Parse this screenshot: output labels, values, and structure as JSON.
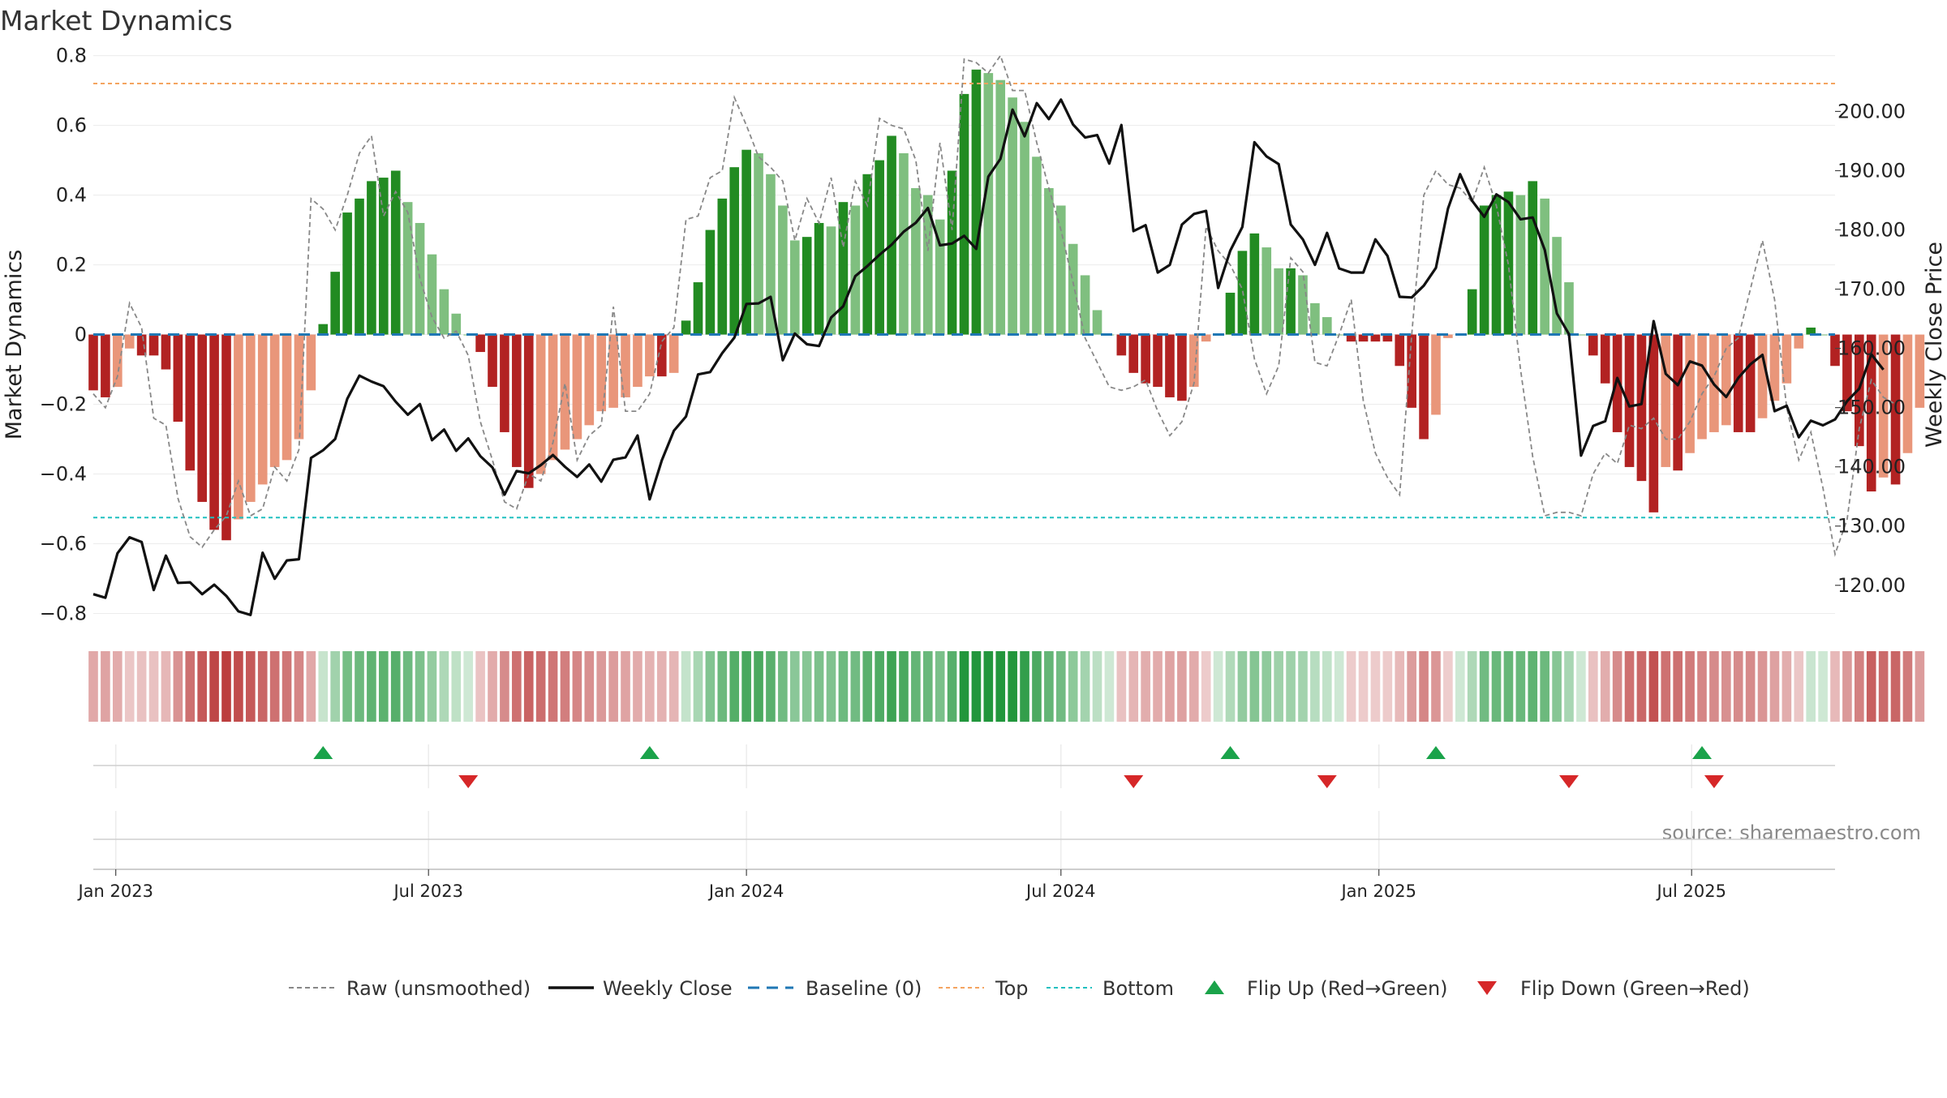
{
  "chart_data": {
    "type": "bar",
    "title": "Market Dynamics",
    "ylabel_left": "Market Dynamics",
    "ylabel_right": "Weekly Close Price",
    "ylim_left": [
      -0.85,
      0.82
    ],
    "ylim_right": [
      112.3,
      210.6
    ],
    "yticks_left": [
      "0.8",
      "0.6",
      "0.4",
      "0.2",
      "0",
      "−0.2",
      "−0.4",
      "−0.6",
      "−0.8"
    ],
    "yticks_left_values": [
      0.8,
      0.6,
      0.4,
      0.2,
      0,
      -0.2,
      -0.4,
      -0.6,
      -0.8
    ],
    "yticks_right": [
      "200.00",
      "190.00",
      "180.00",
      "170.00",
      "160.00",
      "150.00",
      "140.00",
      "130.00",
      "120.00"
    ],
    "yticks_right_values": [
      200,
      190,
      180,
      170,
      160,
      150,
      140,
      130,
      120
    ],
    "x_start": "2022-12-19",
    "x_end": "2025-09-22",
    "xticks": [
      {
        "date": "2023-01-01",
        "label": "Jan 2023"
      },
      {
        "date": "2023-07-01",
        "label": "Jul 2023"
      },
      {
        "date": "2024-01-01",
        "label": "Jan 2024"
      },
      {
        "date": "2024-07-01",
        "label": "Jul 2024"
      },
      {
        "date": "2025-01-01",
        "label": "Jan 2025"
      },
      {
        "date": "2025-07-01",
        "label": "Jul 2025"
      }
    ],
    "first_week": "2022-12-19",
    "dynamics": [
      -0.16,
      -0.18,
      -0.15,
      -0.04,
      -0.06,
      -0.06,
      -0.1,
      -0.25,
      -0.39,
      -0.48,
      -0.56,
      -0.59,
      -0.53,
      -0.48,
      -0.43,
      -0.38,
      -0.36,
      -0.3,
      -0.16,
      0.03,
      0.18,
      0.35,
      0.39,
      0.44,
      0.45,
      0.47,
      0.38,
      0.32,
      0.23,
      0.13,
      0.06,
      0,
      -0.05,
      -0.15,
      -0.28,
      -0.38,
      -0.44,
      -0.4,
      -0.36,
      -0.33,
      -0.3,
      -0.26,
      -0.22,
      -0.21,
      -0.18,
      -0.15,
      -0.12,
      -0.12,
      -0.11,
      0.04,
      0.15,
      0.3,
      0.39,
      0.48,
      0.53,
      0.52,
      0.46,
      0.37,
      0.27,
      0.28,
      0.32,
      0.31,
      0.38,
      0.37,
      0.46,
      0.5,
      0.57,
      0.52,
      0.42,
      0.4,
      0.33,
      0.47,
      0.69,
      0.76,
      0.75,
      0.73,
      0.68,
      0.61,
      0.51,
      0.42,
      0.37,
      0.26,
      0.17,
      0.07,
      0,
      -0.06,
      -0.11,
      -0.14,
      -0.15,
      -0.18,
      -0.19,
      -0.15,
      -0.02,
      0,
      0.12,
      0.24,
      0.29,
      0.25,
      0.19,
      0.19,
      0.17,
      0.09,
      0.05,
      0,
      -0.02,
      -0.02,
      -0.02,
      -0.02,
      -0.09,
      -0.21,
      -0.3,
      -0.23,
      -0.01,
      0,
      0.13,
      0.37,
      0.4,
      0.41,
      0.4,
      0.44,
      0.39,
      0.28,
      0.15,
      0,
      -0.06,
      -0.14,
      -0.28,
      -0.38,
      -0.42,
      -0.51,
      -0.38,
      -0.39,
      -0.34,
      -0.3,
      -0.28,
      -0.26,
      -0.28,
      -0.28,
      -0.24,
      -0.19,
      -0.14,
      -0.04,
      0.02,
      0,
      -0.09,
      -0.22,
      -0.32,
      -0.45,
      -0.41,
      -0.43,
      -0.34,
      -0.21
    ],
    "raw_unsmoothed": [
      -0.17,
      -0.21,
      -0.12,
      0.09,
      0.02,
      -0.24,
      -0.26,
      -0.47,
      -0.58,
      -0.61,
      -0.56,
      -0.52,
      -0.42,
      -0.52,
      -0.5,
      -0.38,
      -0.42,
      -0.33,
      0.39,
      0.36,
      0.3,
      0.4,
      0.52,
      0.57,
      0.34,
      0.41,
      0.35,
      0.16,
      0.05,
      -0.01,
      0.01,
      -0.06,
      -0.25,
      -0.36,
      -0.48,
      -0.5,
      -0.4,
      -0.42,
      -0.31,
      -0.14,
      -0.36,
      -0.29,
      -0.26,
      0.08,
      -0.22,
      -0.22,
      -0.17,
      -0.02,
      0.02,
      0.33,
      0.34,
      0.45,
      0.47,
      0.68,
      0.6,
      0.51,
      0.48,
      0.44,
      0.27,
      0.39,
      0.32,
      0.45,
      0.25,
      0.44,
      0.37,
      0.62,
      0.6,
      0.59,
      0.5,
      0.24,
      0.55,
      0.3,
      0.79,
      0.78,
      0.75,
      0.8,
      0.7,
      0.7,
      0.55,
      0.42,
      0.3,
      0.15,
      -0.01,
      -0.08,
      -0.15,
      -0.16,
      -0.15,
      -0.13,
      -0.22,
      -0.29,
      -0.25,
      -0.14,
      0.31,
      0.24,
      0.2,
      0.13,
      -0.07,
      -0.17,
      -0.09,
      0.22,
      0.18,
      -0.08,
      -0.09,
      0.0,
      0.1,
      -0.19,
      -0.34,
      -0.41,
      -0.46,
      0.0,
      0.4,
      0.47,
      0.43,
      0.42,
      0.38,
      0.48,
      0.37,
      0.2,
      -0.1,
      -0.35,
      -0.52,
      -0.51,
      -0.51,
      -0.52,
      -0.4,
      -0.34,
      -0.37,
      -0.26,
      -0.27,
      -0.24,
      -0.3,
      -0.3,
      -0.25,
      -0.17,
      -0.12,
      -0.04,
      -0.01,
      0.13,
      0.27,
      0.1,
      -0.21,
      -0.36,
      -0.28,
      -0.44,
      -0.63,
      -0.53,
      -0.27,
      -0.13,
      -0.18,
      -0.2
    ],
    "weekly_close": [
      118.5,
      117.9,
      125.4,
      128.1,
      127.3,
      119.2,
      125.0,
      120.4,
      120.5,
      118.5,
      120.1,
      118.2,
      115.6,
      115.0,
      125.5,
      121.1,
      124.2,
      124.4,
      141.5,
      142.8,
      144.7,
      151.5,
      155.4,
      154.4,
      153.6,
      151.0,
      148.8,
      150.6,
      144.5,
      146.3,
      142.7,
      144.8,
      141.8,
      139.9,
      135.3,
      139.3,
      138.9,
      140.3,
      142.0,
      140.0,
      138.3,
      140.4,
      137.5,
      141.2,
      141.6,
      145.3,
      134.5,
      141.1,
      146.1,
      148.5,
      155.6,
      156.0,
      159.2,
      161.8,
      167.5,
      167.6,
      168.7,
      158.0,
      162.5,
      160.7,
      160.4,
      165.2,
      167.1,
      172.2,
      173.9,
      175.8,
      177.5,
      179.7,
      181.2,
      183.7,
      177.4,
      177.7,
      179.0,
      176.8,
      189.0,
      192.0,
      200.3,
      195.8,
      201.4,
      198.7,
      202.0,
      197.8,
      195.6,
      196.0,
      191.2,
      197.7,
      179.8,
      180.8,
      172.8,
      174.1,
      180.9,
      182.7,
      183.2,
      170.2,
      176.5,
      180.5,
      194.8,
      192.4,
      191.1,
      180.9,
      178.4,
      174.1,
      179.5,
      173.5,
      172.8,
      172.8,
      178.4,
      175.6,
      168.7,
      168.6,
      170.6,
      173.6,
      183.6,
      189.4,
      184.9,
      182.2,
      186.0,
      184.7,
      181.8,
      182.1,
      176.6,
      165.9,
      162.4,
      141.9,
      146.9,
      147.7,
      155.0,
      150.2,
      150.6,
      164.6,
      155.7,
      153.8,
      157.8,
      157.1,
      153.9,
      151.8,
      155.0,
      157.3,
      158.9,
      149.4,
      150.3,
      145.0,
      147.8,
      147.0,
      148.0,
      151.1,
      153.2,
      159.0,
      156.4
    ],
    "top_level": 0.72,
    "bottom_level": -0.525,
    "baseline": 0,
    "flip_up_dates": [
      "2023-05-01",
      "2023-11-06",
      "2024-10-07",
      "2025-02-03",
      "2025-07-07"
    ],
    "flip_down_dates": [
      "2023-07-24",
      "2024-08-12",
      "2024-12-02",
      "2025-04-21",
      "2025-07-14"
    ],
    "legend": [
      "Raw (unsmoothed)",
      "Weekly Close",
      "Baseline (0)",
      "Top",
      "Bottom",
      "Flip Up (Red→Green)",
      "Flip Down (Green→Red)"
    ],
    "legend_position": "bottom",
    "grid": true,
    "source": "source: sharemaestro.com"
  },
  "colors": {
    "pos_strong": "#228b22",
    "pos_weak": "#7fbf7f",
    "neg_strong": "#b22222",
    "neg_weak": "#e9967a",
    "raw_line": "#888888",
    "close_line": "#111111",
    "baseline": "#1f77b4",
    "top": "#f4a460",
    "bottom": "#20c0c0",
    "flip_up": "#1aa34a",
    "flip_down": "#d62728",
    "grid": "#ececec",
    "axis_text": "#222222"
  }
}
